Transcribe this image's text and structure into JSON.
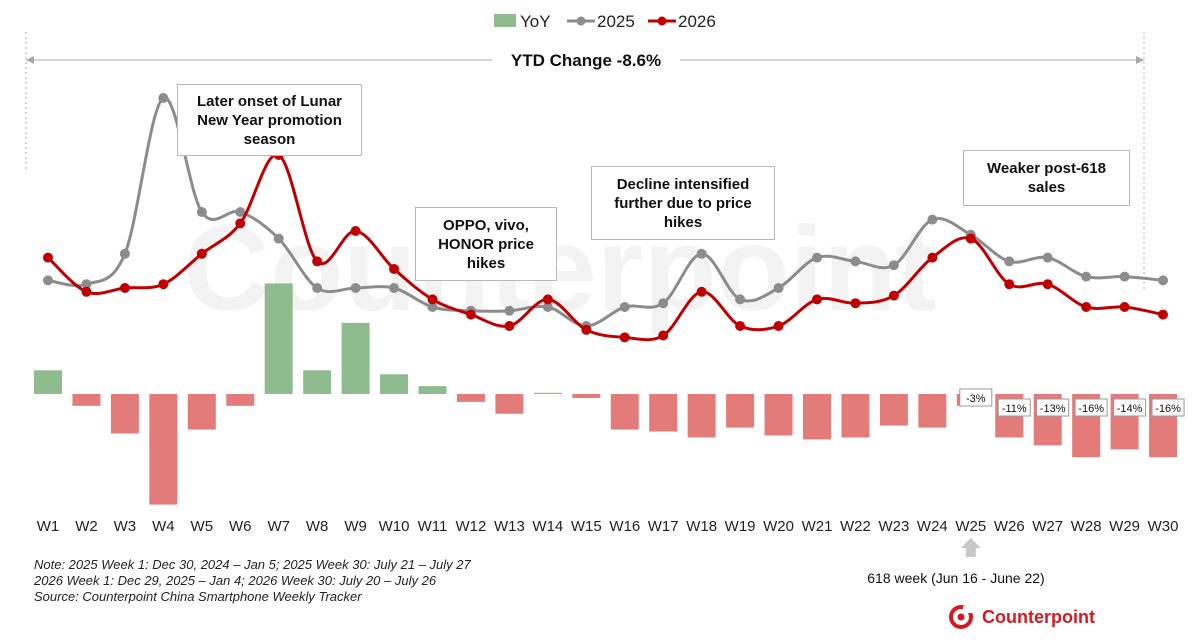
{
  "chart_data": {
    "type": "bar+line",
    "categories": [
      "W1",
      "W2",
      "W3",
      "W4",
      "W5",
      "W6",
      "W7",
      "W8",
      "W9",
      "W10",
      "W11",
      "W12",
      "W13",
      "W14",
      "W15",
      "W16",
      "W17",
      "W18",
      "W19",
      "W20",
      "W21",
      "W22",
      "W23",
      "W24",
      "W25",
      "W26",
      "W27",
      "W28",
      "W29",
      "W30"
    ],
    "series": [
      {
        "name": "YoY",
        "type": "bar",
        "values": [
          6,
          -3,
          -10,
          -28,
          -9,
          -3,
          28,
          6,
          18,
          5,
          2,
          -2,
          -5,
          0.3,
          -1,
          -9,
          -9.5,
          -11,
          -8.5,
          -10.5,
          -11.5,
          -11,
          -8,
          -8.5,
          -3,
          -11,
          -13,
          -16,
          -14,
          -16
        ]
      },
      {
        "name": "2025",
        "type": "line",
        "values": [
          27,
          26,
          34,
          75,
          45,
          45,
          38,
          25,
          25,
          25,
          20,
          19,
          19,
          20,
          15,
          20,
          21,
          34,
          22,
          25,
          33,
          32,
          31,
          43,
          39,
          32,
          33,
          28,
          28,
          27
        ]
      },
      {
        "name": "2026",
        "type": "line",
        "values": [
          33,
          24,
          25,
          26,
          34,
          42,
          60,
          32,
          40,
          30,
          22,
          18,
          15,
          22,
          14,
          12,
          12.5,
          24,
          15,
          15,
          22,
          21,
          23,
          33,
          38,
          26,
          26,
          20,
          20,
          18
        ]
      }
    ],
    "data_labels": [
      "-3%",
      "-11%",
      "-13%",
      "-16%",
      "-14%",
      "-16%"
    ],
    "legend": {
      "placement": "top-center",
      "entries": [
        "YoY",
        "2025",
        "2026"
      ]
    },
    "colors": {
      "yoy_pos": "#8fbc8f",
      "yoy_neg": "#e47b7b",
      "line_2025": "#8c8c8c",
      "line_2026": "#c00000"
    },
    "ytd_label": "YTD Change -8.6%",
    "grid": false
  },
  "annotations": [
    "Later onset of Lunar\nNew Year promotion\nseason",
    "OPPO, vivo,\nHONOR price\nhikes",
    "Decline intensified\nfurther due to price\nhikes",
    "Weaker post-618\nsales"
  ],
  "notes": [
    "Note: 2025 Week 1: Dec 30, 2024 – Jan 5; 2025 Week 30: July 21 – July 27",
    "2026 Week 1: Dec 29, 2025 – Jan 4; 2026 Week 30: July 20 – July 26",
    "Source: Counterpoint China Smartphone Weekly Tracker"
  ],
  "week618_label": "618 week (Jun 16 - June 22)",
  "watermark": "Counterpoint",
  "brand": {
    "name": "Counterpoint",
    "color": "#d71920"
  }
}
